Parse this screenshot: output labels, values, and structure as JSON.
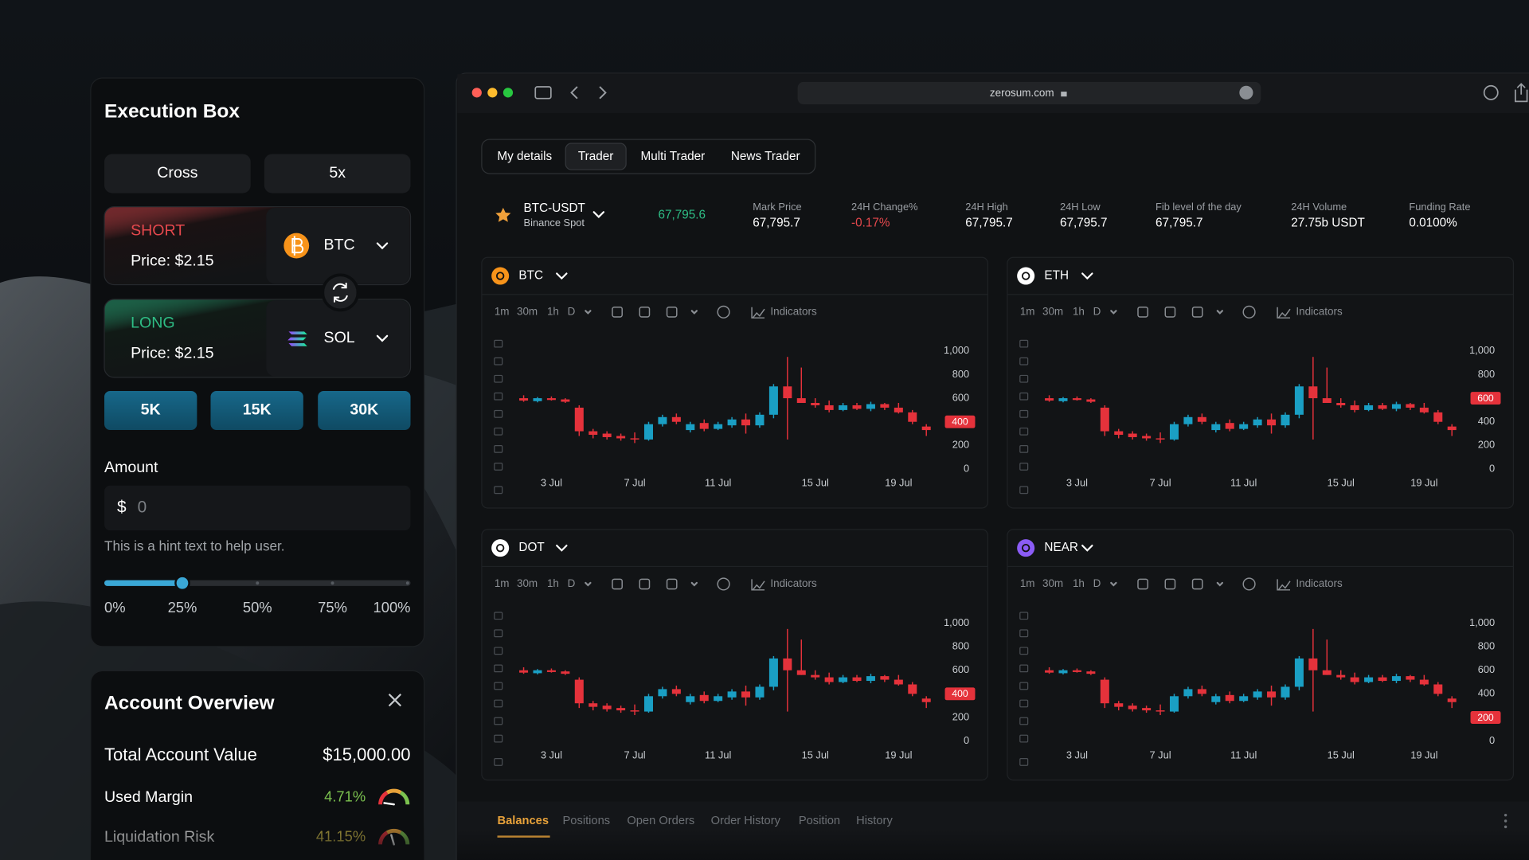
{
  "execution_box": {
    "title": "Execution Box",
    "margin_mode": "Cross",
    "leverage": "5x",
    "short": {
      "label": "SHORT",
      "price": "Price: $2.15",
      "asset": "BTC"
    },
    "long": {
      "label": "LONG",
      "price": "Price: $2.15",
      "asset": "SOL"
    },
    "presets": [
      "5K",
      "15K",
      "30K"
    ],
    "amount_label": "Amount",
    "currency": "$",
    "amount_placeholder": "0",
    "hint": "This is a hint text to help user.",
    "slider": {
      "value": 25,
      "range": [
        0,
        100
      ],
      "ticks": [
        {
          "value": 0,
          "label": "0%"
        },
        {
          "value": 25,
          "label": "25%"
        },
        {
          "value": 50,
          "label": "50%"
        },
        {
          "value": 75,
          "label": "75%"
        },
        {
          "value": 100,
          "label": "100%"
        }
      ]
    }
  },
  "account_overview": {
    "title": "Account Overview",
    "total_label": "Total Account Value",
    "total_value": "$15,000.00",
    "rows": [
      {
        "label": "Used Margin",
        "value": 4.71,
        "value_label": "4.71%"
      },
      {
        "label": "Liquidation Risk",
        "value": 41.15,
        "value_label": "41.15%"
      }
    ]
  },
  "browser": {
    "url": "zerosum.com"
  },
  "tabs": [
    "My details",
    "Trader",
    "Multi Trader",
    "News Trader"
  ],
  "active_tab": 1,
  "ticker": {
    "symbol": "BTC-USDT",
    "exchange": "Binance Spot",
    "last_price": "67,795.6",
    "stats": [
      {
        "label": "Mark Price",
        "value": "67,795.7"
      },
      {
        "label": "24H Change%",
        "value": "-0.17%"
      },
      {
        "label": "24H High",
        "value": "67,795.7"
      },
      {
        "label": "24H Low",
        "value": "67,795.7"
      },
      {
        "label": "Fib level of the day",
        "value": "67,795.7"
      },
      {
        "label": "24H Volume",
        "value": "27.75b USDT"
      },
      {
        "label": "Funding Rate",
        "value": "0.0100%"
      }
    ]
  },
  "chart_toolbar": {
    "timeframes": [
      "1m",
      "30m",
      "1h",
      "D"
    ],
    "indicators": "Indicators"
  },
  "charts": [
    {
      "type": "candlestick",
      "asset": "BTC",
      "color": "#f7931a",
      "ylim": [
        0,
        1000
      ],
      "yticks": [
        0,
        200,
        400,
        600,
        800,
        {
          "value": 1000,
          "label": "1,000"
        }
      ],
      "xticks": [
        {
          "value": 2,
          "label": "3 Jul"
        },
        {
          "value": 8,
          "label": "7 Jul"
        },
        {
          "value": 14,
          "label": "11 Jul"
        },
        {
          "value": 21,
          "label": "15 Jul"
        },
        {
          "value": 27,
          "label": "19 Jul"
        }
      ],
      "price": 400,
      "candles": [
        [
          600,
          625,
          570,
          580
        ],
        [
          575,
          610,
          565,
          600
        ],
        [
          600,
          615,
          580,
          585
        ],
        [
          590,
          600,
          560,
          570
        ],
        [
          520,
          540,
          280,
          320
        ],
        [
          320,
          340,
          260,
          290
        ],
        [
          300,
          320,
          250,
          270
        ],
        [
          280,
          300,
          240,
          260
        ],
        [
          260,
          310,
          220,
          250
        ],
        [
          250,
          400,
          240,
          380
        ],
        [
          380,
          460,
          360,
          440
        ],
        [
          440,
          470,
          380,
          400
        ],
        [
          330,
          400,
          310,
          380
        ],
        [
          390,
          420,
          320,
          340
        ],
        [
          340,
          400,
          330,
          380
        ],
        [
          370,
          440,
          350,
          420
        ],
        [
          420,
          470,
          300,
          370
        ],
        [
          370,
          480,
          350,
          460
        ],
        [
          460,
          720,
          430,
          700
        ],
        [
          700,
          950,
          250,
          600
        ],
        [
          600,
          860,
          560,
          560
        ],
        [
          560,
          600,
          520,
          540
        ],
        [
          540,
          580,
          480,
          500
        ],
        [
          500,
          560,
          490,
          540
        ],
        [
          540,
          560,
          500,
          510
        ],
        [
          510,
          570,
          490,
          550
        ],
        [
          550,
          560,
          500,
          520
        ],
        [
          520,
          560,
          470,
          480
        ],
        [
          480,
          500,
          380,
          400
        ],
        [
          360,
          380,
          280,
          330
        ]
      ]
    },
    {
      "type": "candlestick",
      "asset": "ETH",
      "color": "#ffffff",
      "ylim": [
        0,
        1000
      ],
      "yticks": [
        0,
        200,
        400,
        600,
        800,
        {
          "value": 1000,
          "label": "1,000"
        }
      ],
      "xticks": [
        {
          "value": 2,
          "label": "3 Jul"
        },
        {
          "value": 8,
          "label": "7 Jul"
        },
        {
          "value": 14,
          "label": "11 Jul"
        },
        {
          "value": 21,
          "label": "15 Jul"
        },
        {
          "value": 27,
          "label": "19 Jul"
        }
      ],
      "price": 600,
      "candles": [
        [
          600,
          625,
          570,
          580
        ],
        [
          575,
          610,
          565,
          600
        ],
        [
          600,
          615,
          580,
          585
        ],
        [
          590,
          600,
          560,
          570
        ],
        [
          520,
          540,
          280,
          320
        ],
        [
          320,
          340,
          260,
          290
        ],
        [
          300,
          320,
          250,
          270
        ],
        [
          280,
          300,
          240,
          260
        ],
        [
          260,
          310,
          220,
          250
        ],
        [
          250,
          400,
          240,
          380
        ],
        [
          380,
          460,
          360,
          440
        ],
        [
          440,
          470,
          380,
          400
        ],
        [
          330,
          400,
          310,
          380
        ],
        [
          390,
          420,
          320,
          340
        ],
        [
          340,
          400,
          330,
          380
        ],
        [
          370,
          440,
          350,
          420
        ],
        [
          420,
          470,
          300,
          370
        ],
        [
          370,
          480,
          350,
          460
        ],
        [
          460,
          720,
          430,
          700
        ],
        [
          700,
          950,
          250,
          600
        ],
        [
          600,
          860,
          560,
          560
        ],
        [
          560,
          600,
          520,
          540
        ],
        [
          540,
          580,
          480,
          500
        ],
        [
          500,
          560,
          490,
          540
        ],
        [
          540,
          560,
          500,
          510
        ],
        [
          510,
          570,
          490,
          550
        ],
        [
          550,
          560,
          500,
          520
        ],
        [
          520,
          560,
          470,
          480
        ],
        [
          480,
          500,
          380,
          400
        ],
        [
          360,
          380,
          280,
          330
        ]
      ]
    },
    {
      "type": "candlestick",
      "asset": "DOT",
      "color": "#ffffff",
      "ylim": [
        0,
        1000
      ],
      "yticks": [
        0,
        200,
        400,
        600,
        800,
        {
          "value": 1000,
          "label": "1,000"
        }
      ],
      "xticks": [
        {
          "value": 2,
          "label": "3 Jul"
        },
        {
          "value": 8,
          "label": "7 Jul"
        },
        {
          "value": 14,
          "label": "11 Jul"
        },
        {
          "value": 21,
          "label": "15 Jul"
        },
        {
          "value": 27,
          "label": "19 Jul"
        }
      ],
      "price": 400,
      "candles": [
        [
          600,
          625,
          570,
          580
        ],
        [
          575,
          610,
          565,
          600
        ],
        [
          600,
          615,
          580,
          585
        ],
        [
          590,
          600,
          560,
          570
        ],
        [
          520,
          540,
          280,
          320
        ],
        [
          320,
          340,
          260,
          290
        ],
        [
          300,
          320,
          250,
          270
        ],
        [
          280,
          300,
          240,
          260
        ],
        [
          260,
          310,
          220,
          250
        ],
        [
          250,
          400,
          240,
          380
        ],
        [
          380,
          460,
          360,
          440
        ],
        [
          440,
          470,
          380,
          400
        ],
        [
          330,
          400,
          310,
          380
        ],
        [
          390,
          420,
          320,
          340
        ],
        [
          340,
          400,
          330,
          380
        ],
        [
          370,
          440,
          350,
          420
        ],
        [
          420,
          470,
          300,
          370
        ],
        [
          370,
          480,
          350,
          460
        ],
        [
          460,
          720,
          430,
          700
        ],
        [
          700,
          950,
          250,
          600
        ],
        [
          600,
          860,
          560,
          560
        ],
        [
          560,
          600,
          520,
          540
        ],
        [
          540,
          580,
          480,
          500
        ],
        [
          500,
          560,
          490,
          540
        ],
        [
          540,
          560,
          500,
          510
        ],
        [
          510,
          570,
          490,
          550
        ],
        [
          550,
          560,
          500,
          520
        ],
        [
          520,
          560,
          470,
          480
        ],
        [
          480,
          500,
          380,
          400
        ],
        [
          360,
          380,
          280,
          330
        ]
      ]
    },
    {
      "type": "candlestick",
      "asset": "NEAR",
      "color": "#8b5cf6",
      "ylim": [
        0,
        1000
      ],
      "yticks": [
        0,
        200,
        400,
        600,
        800,
        {
          "value": 1000,
          "label": "1,000"
        }
      ],
      "xticks": [
        {
          "value": 2,
          "label": "3 Jul"
        },
        {
          "value": 8,
          "label": "7 Jul"
        },
        {
          "value": 14,
          "label": "11 Jul"
        },
        {
          "value": 21,
          "label": "15 Jul"
        },
        {
          "value": 27,
          "label": "19 Jul"
        }
      ],
      "price": 200,
      "candles": [
        [
          600,
          625,
          570,
          580
        ],
        [
          575,
          610,
          565,
          600
        ],
        [
          600,
          615,
          580,
          585
        ],
        [
          590,
          600,
          560,
          570
        ],
        [
          520,
          540,
          280,
          320
        ],
        [
          320,
          340,
          260,
          290
        ],
        [
          300,
          320,
          250,
          270
        ],
        [
          280,
          300,
          240,
          260
        ],
        [
          260,
          310,
          220,
          250
        ],
        [
          250,
          400,
          240,
          380
        ],
        [
          380,
          460,
          360,
          440
        ],
        [
          440,
          470,
          380,
          400
        ],
        [
          330,
          400,
          310,
          380
        ],
        [
          390,
          420,
          320,
          340
        ],
        [
          340,
          400,
          330,
          380
        ],
        [
          370,
          440,
          350,
          420
        ],
        [
          420,
          470,
          300,
          370
        ],
        [
          370,
          480,
          350,
          460
        ],
        [
          460,
          720,
          430,
          700
        ],
        [
          700,
          950,
          250,
          600
        ],
        [
          600,
          860,
          560,
          560
        ],
        [
          560,
          600,
          520,
          540
        ],
        [
          540,
          580,
          480,
          500
        ],
        [
          500,
          560,
          490,
          540
        ],
        [
          540,
          560,
          500,
          510
        ],
        [
          510,
          570,
          490,
          550
        ],
        [
          550,
          560,
          500,
          520
        ],
        [
          520,
          560,
          470,
          480
        ],
        [
          480,
          500,
          380,
          400
        ],
        [
          360,
          380,
          280,
          330
        ]
      ]
    }
  ],
  "bottom_tabs": [
    "Balances",
    "Positions",
    "Open Orders",
    "Order History",
    "Position",
    "History"
  ]
}
